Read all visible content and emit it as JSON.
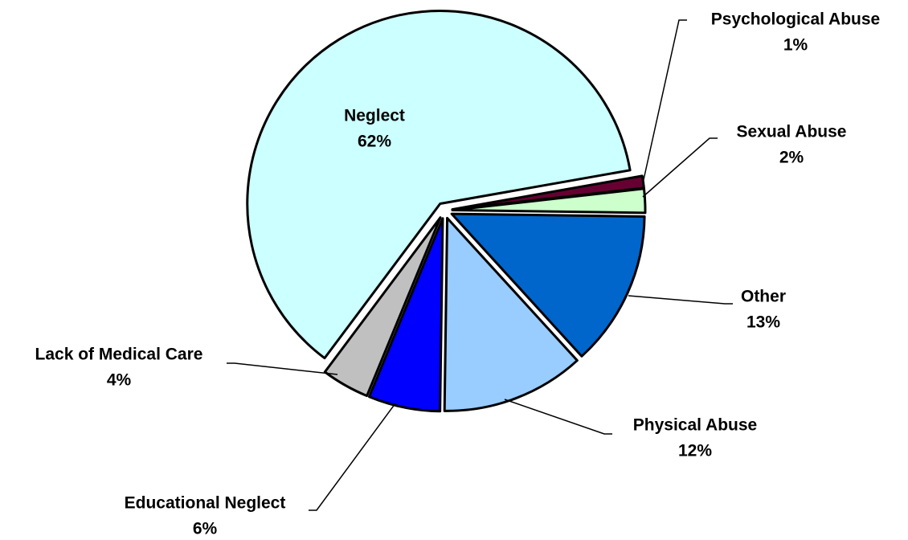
{
  "chart_data": {
    "type": "pie",
    "categories": [
      "Psychological Abuse",
      "Sexual Abuse",
      "Other",
      "Physical Abuse",
      "Educational Neglect",
      "Lack of Medical Care",
      "Neglect"
    ],
    "values": [
      1,
      2,
      13,
      12,
      6,
      4,
      62
    ],
    "value_labels": [
      "1%",
      "2%",
      "13%",
      "12%",
      "6%",
      "4%",
      "62%"
    ],
    "colors": [
      "#660033",
      "#ccffcc",
      "#0066cc",
      "#99ccff",
      "#0000ff",
      "#c0c0c0",
      "#ccffff"
    ]
  }
}
